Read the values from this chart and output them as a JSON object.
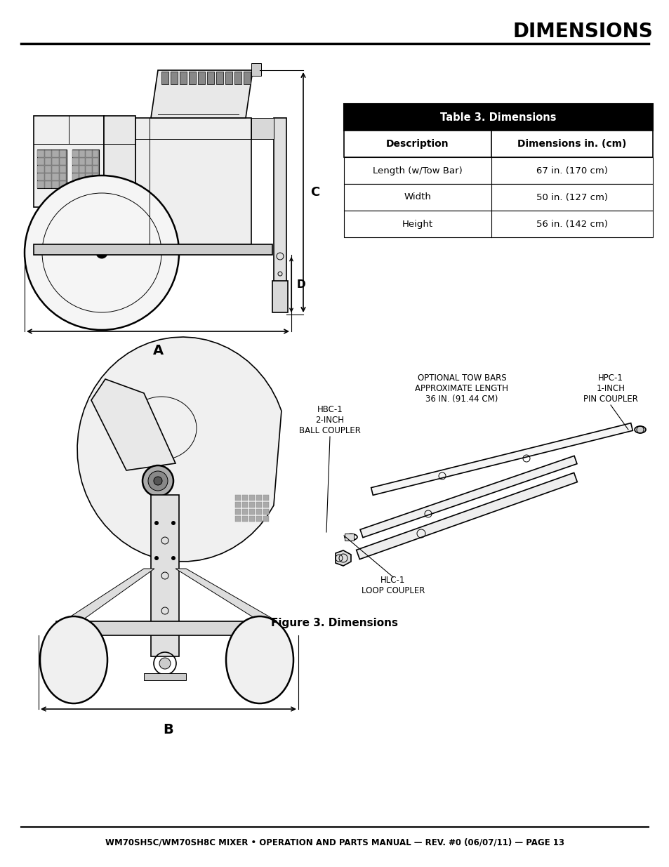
{
  "title": "DIMENSIONS",
  "title_fontsize": 20,
  "table_title": "Table 3. Dimensions",
  "table_headers": [
    "Description",
    "Dimensions in. (cm)"
  ],
  "table_rows": [
    [
      "Length (w/Tow Bar)",
      "67 in. (170 cm)"
    ],
    [
      "Width",
      "50 in. (127 cm)"
    ],
    [
      "Height",
      "56 in. (142 cm)"
    ]
  ],
  "figure_caption": "Figure 3. Dimensions",
  "footer_text": "WM70SH5C/WM70SH8C MIXER • OPERATION AND PARTS MANUAL — REV. #0 (06/07/11) — PAGE 13",
  "bg_color": "#ffffff",
  "label_C": "C",
  "label_D": "D",
  "label_A": "A",
  "label_B": "B",
  "hbc1_text": "HBC-1\n2-INCH\nBALL COUPLER",
  "optional_text": "OPTIONAL TOW BARS\nAPPROXIMATE LENGTH\n36 IN. (91.44 CM)",
  "hpc1_text": "HPC-1\n1-INCH\nPIN COUPLER",
  "hlc1_text": "HLC-1\nLOOP COUPLER"
}
